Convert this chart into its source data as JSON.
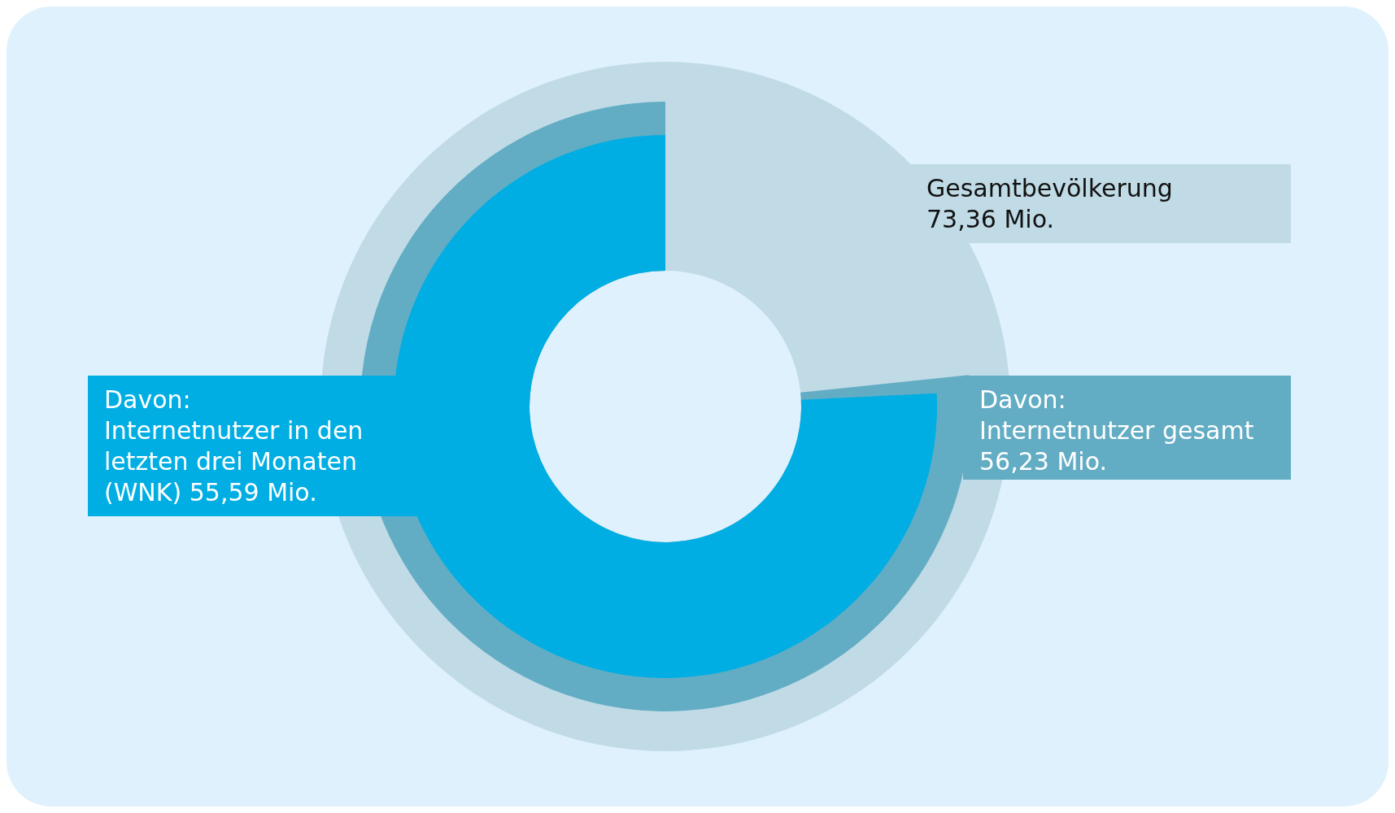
{
  "chart_data": {
    "type": "other",
    "categories": [
      "Gesamtbevölkerung",
      "Davon:\nInternetnutzer gesamt",
      "Davon:\nInternetnutzer in den letzten drei Monaten (WNK)"
    ],
    "values": [
      73.36,
      56.23,
      55.59
    ],
    "value_labels": [
      "73,36 Mio.",
      "56,23 Mio.",
      "55,59 Mio."
    ],
    "colors": [
      "#c0dbe6",
      "#63adc4",
      "#00aee3"
    ]
  }
}
